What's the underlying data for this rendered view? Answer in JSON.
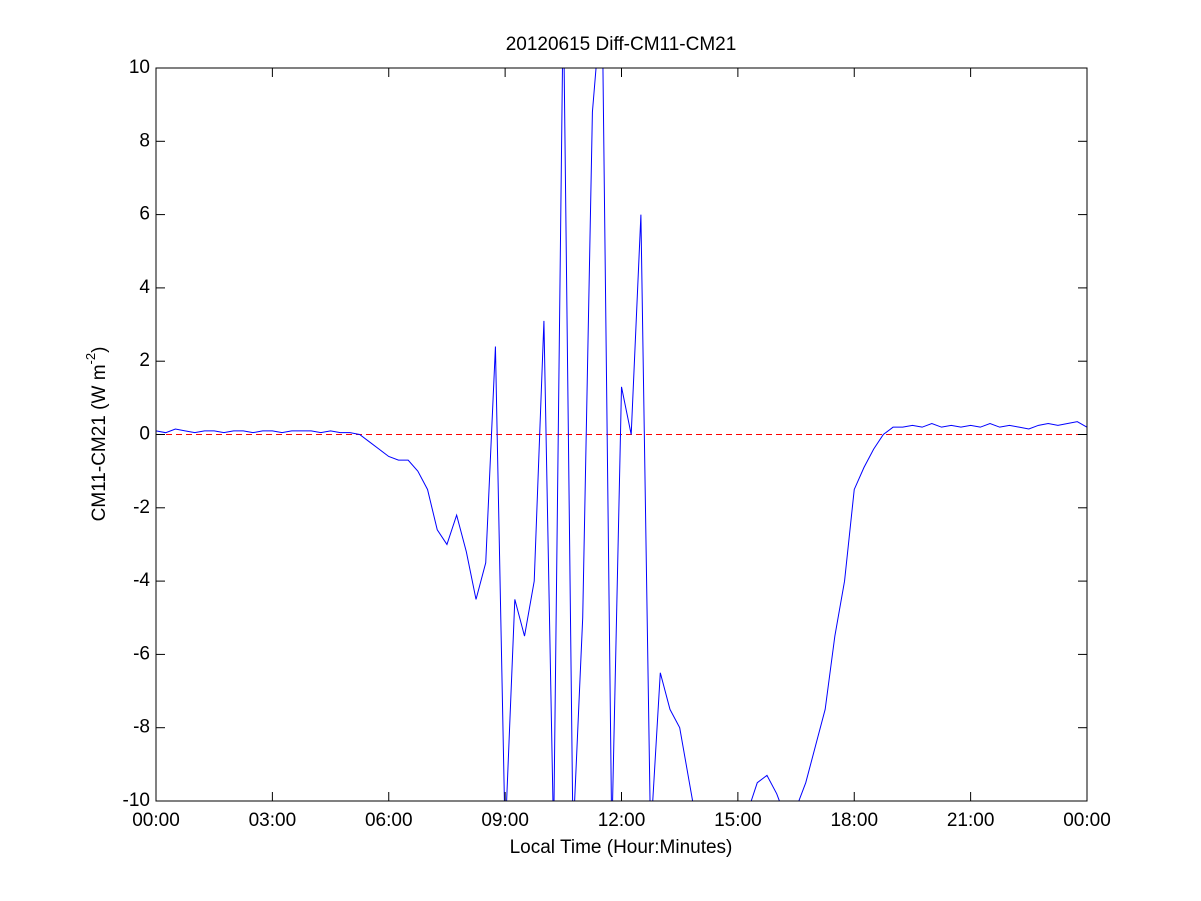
{
  "chart_data": {
    "type": "line",
    "title": "20120615 Diff-CM11-CM21",
    "xlabel": "Local Time (Hour:Minutes)",
    "ylabel": [
      "CM11-CM21 (W m",
      "-2",
      ")"
    ],
    "x": [
      0,
      0.25,
      0.5,
      0.75,
      1,
      1.25,
      1.5,
      1.75,
      2,
      2.25,
      2.5,
      2.75,
      3,
      3.25,
      3.5,
      3.75,
      4,
      4.25,
      4.5,
      4.75,
      5,
      5.25,
      5.5,
      5.75,
      6,
      6.25,
      6.5,
      6.75,
      7,
      7.25,
      7.5,
      7.75,
      8,
      8.25,
      8.5,
      8.75,
      9,
      9.25,
      9.5,
      9.75,
      10,
      10.25,
      10.5,
      10.75,
      11,
      11.25,
      11.5,
      11.75,
      12,
      12.25,
      12.5,
      12.75,
      13,
      13.25,
      13.5,
      13.75,
      14,
      14.25,
      14.5,
      14.75,
      15,
      15.25,
      15.5,
      15.75,
      16,
      16.25,
      16.5,
      16.75,
      17,
      17.25,
      17.5,
      17.75,
      18,
      18.25,
      18.5,
      18.75,
      19,
      19.25,
      19.5,
      19.75,
      20,
      20.25,
      20.5,
      20.75,
      21,
      21.25,
      21.5,
      21.75,
      22,
      22.25,
      22.5,
      22.75,
      23,
      23.25,
      23.5,
      23.75,
      24
    ],
    "series": [
      {
        "color": "#0000ff",
        "values": [
          0.1,
          0.05,
          0.15,
          0.1,
          0.05,
          0.1,
          0.1,
          0.05,
          0.1,
          0.1,
          0.05,
          0.1,
          0.1,
          0.05,
          0.1,
          0.1,
          0.1,
          0.05,
          0.1,
          0.05,
          0.05,
          0.0,
          -0.2,
          -0.4,
          -0.6,
          -0.7,
          -0.7,
          -1.0,
          -1.5,
          -2.6,
          -3.0,
          -2.2,
          -3.2,
          -4.5,
          -3.5,
          2.4,
          -11,
          -4.5,
          -5.5,
          -4.0,
          3.1,
          -11,
          12,
          -11,
          -5,
          8.8,
          12,
          -11,
          1.3,
          0.0,
          6,
          -11,
          -6.5,
          -7.5,
          -8.0,
          -9.5,
          -11,
          -12,
          -11,
          -10.5,
          -12,
          -10.3,
          -9.5,
          -9.3,
          -9.8,
          -10.5,
          -10.2,
          -9.5,
          -8.5,
          -7.5,
          -5.5,
          -4.0,
          -1.5,
          -0.9,
          -0.4,
          0.0,
          0.2,
          0.2,
          0.25,
          0.2,
          0.3,
          0.2,
          0.25,
          0.2,
          0.25,
          0.2,
          0.3,
          0.2,
          0.25,
          0.2,
          0.15,
          0.25,
          0.3,
          0.25,
          0.3,
          0.35,
          0.2
        ]
      }
    ],
    "reference_line": {
      "value": 0,
      "color": "#ff0000"
    },
    "xlim": [
      0,
      24
    ],
    "xticks": [
      {
        "value": 0,
        "label": "00:00"
      },
      {
        "value": 3,
        "label": "03:00"
      },
      {
        "value": 6,
        "label": "06:00"
      },
      {
        "value": 9,
        "label": "09:00"
      },
      {
        "value": 12,
        "label": "12:00"
      },
      {
        "value": 15,
        "label": "15:00"
      },
      {
        "value": 18,
        "label": "18:00"
      },
      {
        "value": 21,
        "label": "21:00"
      },
      {
        "value": 24,
        "label": "00:00"
      }
    ],
    "ylim": [
      -10,
      10
    ],
    "yticks": [
      -10,
      -8,
      -6,
      -4,
      -2,
      0,
      2,
      4,
      6,
      8,
      10
    ]
  }
}
